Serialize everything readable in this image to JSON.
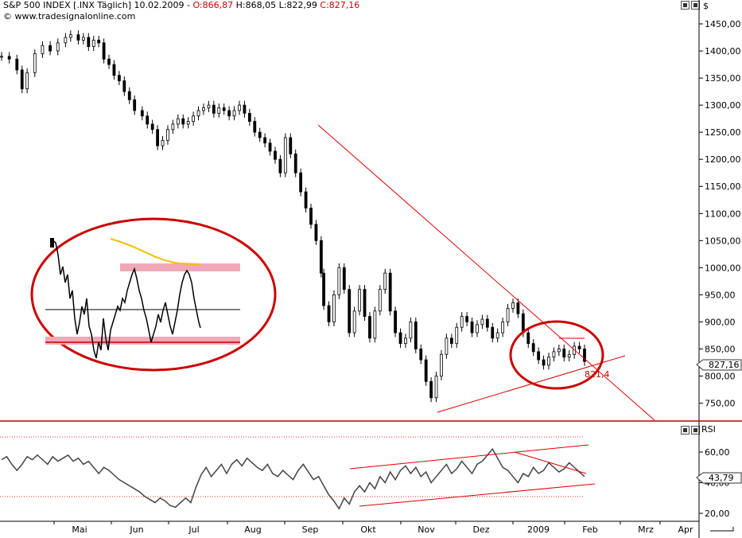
{
  "header": {
    "symbol": "S&P 500 INDEX [.INX  Täglich] 10.02.2009 -",
    "open": "O:866,87",
    "high_low": "H:868,05 L:822,99",
    "close": "C:827,16",
    "copyright": "© www.tradesignalonline.com"
  },
  "axis_unit": "$",
  "rsi_label": "RSI",
  "annotations": {
    "last_price": "827,16",
    "support_level": "821,4",
    "last_rsi": "43,79"
  },
  "colors": {
    "candle": "#000000",
    "trendline": "#dd0000",
    "ellipse": "#cc0000",
    "zone": "#f0a8b8",
    "moving_average": "#f0c000",
    "rsi": "#444444"
  },
  "chart_data": [
    {
      "type": "line",
      "name": "price",
      "ylim": [
        720,
        1480
      ],
      "yticks": [
        "1450,00",
        "1400,00",
        "1350,00",
        "1300,00",
        "1250,00",
        "1200,00",
        "1150,00",
        "1100,00",
        "1050,00",
        "1000,00",
        "950,00",
        "900,00",
        "850,00",
        "800,00",
        "750,00"
      ],
      "ytick_values": [
        1450,
        1400,
        1350,
        1300,
        1250,
        1200,
        1150,
        1100,
        1050,
        1000,
        950,
        900,
        850,
        800,
        750
      ],
      "xticks": [
        "Mai",
        "Jun",
        "Jul",
        "Aug",
        "Sep",
        "Okt",
        "Nov",
        "Dez",
        "2009",
        "Feb",
        "Mrz",
        "Apr"
      ],
      "points": [
        [
          0,
          1390
        ],
        [
          3,
          1385
        ],
        [
          6,
          1365
        ],
        [
          8,
          1330
        ],
        [
          10,
          1360
        ],
        [
          13,
          1395
        ],
        [
          16,
          1410
        ],
        [
          19,
          1400
        ],
        [
          22,
          1415
        ],
        [
          25,
          1425
        ],
        [
          27,
          1430
        ],
        [
          30,
          1420
        ],
        [
          32,
          1425
        ],
        [
          34,
          1408
        ],
        [
          36,
          1420
        ],
        [
          38,
          1415
        ],
        [
          40,
          1385
        ],
        [
          42,
          1375
        ],
        [
          44,
          1355
        ],
        [
          46,
          1345
        ],
        [
          48,
          1325
        ],
        [
          50,
          1310
        ],
        [
          52,
          1290
        ],
        [
          55,
          1280
        ],
        [
          57,
          1265
        ],
        [
          59,
          1255
        ],
        [
          61,
          1225
        ],
        [
          63,
          1235
        ],
        [
          65,
          1255
        ],
        [
          67,
          1265
        ],
        [
          69,
          1275
        ],
        [
          71,
          1265
        ],
        [
          73,
          1270
        ],
        [
          75,
          1280
        ],
        [
          77,
          1290
        ],
        [
          79,
          1295
        ],
        [
          81,
          1300
        ],
        [
          83,
          1285
        ],
        [
          85,
          1295
        ],
        [
          87,
          1290
        ],
        [
          89,
          1280
        ],
        [
          91,
          1290
        ],
        [
          93,
          1300
        ],
        [
          95,
          1285
        ],
        [
          97,
          1270
        ],
        [
          99,
          1250
        ],
        [
          101,
          1240
        ],
        [
          103,
          1230
        ],
        [
          105,
          1215
        ],
        [
          107,
          1200
        ],
        [
          109,
          1175
        ],
        [
          111,
          1240
        ],
        [
          113,
          1210
        ],
        [
          115,
          1175
        ],
        [
          117,
          1140
        ],
        [
          119,
          1110
        ],
        [
          121,
          1080
        ],
        [
          123,
          1050
        ],
        [
          125,
          990
        ],
        [
          126,
          930
        ],
        [
          128,
          900
        ],
        [
          130,
          950
        ],
        [
          132,
          1000
        ],
        [
          134,
          960
        ],
        [
          136,
          880
        ],
        [
          138,
          920
        ],
        [
          140,
          960
        ],
        [
          142,
          910
        ],
        [
          144,
          870
        ],
        [
          146,
          920
        ],
        [
          148,
          960
        ],
        [
          150,
          990
        ],
        [
          152,
          920
        ],
        [
          154,
          880
        ],
        [
          156,
          860
        ],
        [
          158,
          870
        ],
        [
          160,
          900
        ],
        [
          162,
          850
        ],
        [
          164,
          830
        ],
        [
          166,
          790
        ],
        [
          168,
          760
        ],
        [
          170,
          800
        ],
        [
          172,
          840
        ],
        [
          174,
          870
        ],
        [
          176,
          860
        ],
        [
          178,
          890
        ],
        [
          180,
          910
        ],
        [
          182,
          900
        ],
        [
          184,
          880
        ],
        [
          186,
          895
        ],
        [
          188,
          905
        ],
        [
          190,
          890
        ],
        [
          192,
          870
        ],
        [
          194,
          880
        ],
        [
          196,
          900
        ],
        [
          198,
          925
        ],
        [
          200,
          935
        ],
        [
          202,
          915
        ],
        [
          204,
          880
        ],
        [
          206,
          860
        ],
        [
          208,
          845
        ],
        [
          210,
          830
        ],
        [
          212,
          820
        ],
        [
          214,
          835
        ],
        [
          216,
          845
        ],
        [
          218,
          850
        ],
        [
          220,
          835
        ],
        [
          222,
          840
        ],
        [
          224,
          855
        ],
        [
          226,
          850
        ],
        [
          228,
          827
        ]
      ]
    },
    {
      "type": "line",
      "name": "RSI",
      "ylim": [
        14,
        68
      ],
      "yticks": [
        "60,00",
        "40,00",
        "20,00"
      ],
      "ytick_values": [
        60,
        40,
        20
      ],
      "points": [
        [
          0,
          55
        ],
        [
          2,
          57
        ],
        [
          4,
          52
        ],
        [
          6,
          48
        ],
        [
          8,
          52
        ],
        [
          10,
          57
        ],
        [
          12,
          55
        ],
        [
          14,
          58
        ],
        [
          16,
          55
        ],
        [
          18,
          52
        ],
        [
          20,
          57
        ],
        [
          22,
          54
        ],
        [
          24,
          56
        ],
        [
          26,
          58
        ],
        [
          28,
          54
        ],
        [
          30,
          56
        ],
        [
          32,
          52
        ],
        [
          34,
          54
        ],
        [
          36,
          50
        ],
        [
          38,
          46
        ],
        [
          40,
          50
        ],
        [
          42,
          48
        ],
        [
          44,
          45
        ],
        [
          46,
          42
        ],
        [
          48,
          40
        ],
        [
          50,
          38
        ],
        [
          52,
          36
        ],
        [
          54,
          34
        ],
        [
          56,
          31
        ],
        [
          58,
          29
        ],
        [
          60,
          27
        ],
        [
          62,
          30
        ],
        [
          64,
          28
        ],
        [
          66,
          25
        ],
        [
          68,
          24
        ],
        [
          70,
          27
        ],
        [
          72,
          30
        ],
        [
          74,
          27
        ],
        [
          76,
          37
        ],
        [
          78,
          45
        ],
        [
          80,
          50
        ],
        [
          82,
          44
        ],
        [
          84,
          48
        ],
        [
          86,
          52
        ],
        [
          88,
          46
        ],
        [
          90,
          52
        ],
        [
          92,
          55
        ],
        [
          94,
          51
        ],
        [
          96,
          56
        ],
        [
          98,
          53
        ],
        [
          100,
          50
        ],
        [
          102,
          48
        ],
        [
          104,
          52
        ],
        [
          106,
          46
        ],
        [
          108,
          44
        ],
        [
          110,
          48
        ],
        [
          112,
          45
        ],
        [
          114,
          42
        ],
        [
          116,
          48
        ],
        [
          118,
          52
        ],
        [
          120,
          47
        ],
        [
          122,
          42
        ],
        [
          124,
          44
        ],
        [
          126,
          38
        ],
        [
          128,
          32
        ],
        [
          130,
          28
        ],
        [
          132,
          23
        ],
        [
          134,
          30
        ],
        [
          136,
          26
        ],
        [
          138,
          34
        ],
        [
          140,
          38
        ],
        [
          142,
          34
        ],
        [
          144,
          40
        ],
        [
          146,
          36
        ],
        [
          148,
          44
        ],
        [
          150,
          40
        ],
        [
          152,
          47
        ],
        [
          154,
          42
        ],
        [
          156,
          48
        ],
        [
          158,
          51
        ],
        [
          160,
          46
        ],
        [
          162,
          50
        ],
        [
          164,
          44
        ],
        [
          166,
          47
        ],
        [
          168,
          40
        ],
        [
          170,
          44
        ],
        [
          172,
          48
        ],
        [
          174,
          52
        ],
        [
          176,
          46
        ],
        [
          178,
          49
        ],
        [
          180,
          54
        ],
        [
          182,
          50
        ],
        [
          184,
          46
        ],
        [
          186,
          52
        ],
        [
          188,
          54
        ],
        [
          190,
          58
        ],
        [
          192,
          62
        ],
        [
          194,
          56
        ],
        [
          196,
          50
        ],
        [
          198,
          48
        ],
        [
          200,
          44
        ],
        [
          202,
          40
        ],
        [
          204,
          46
        ],
        [
          206,
          44
        ],
        [
          208,
          50
        ],
        [
          210,
          46
        ],
        [
          212,
          48
        ],
        [
          214,
          53
        ],
        [
          216,
          50
        ],
        [
          218,
          47
        ],
        [
          220,
          49
        ],
        [
          222,
          53
        ],
        [
          224,
          50
        ],
        [
          226,
          47
        ],
        [
          228,
          44
        ]
      ]
    }
  ]
}
